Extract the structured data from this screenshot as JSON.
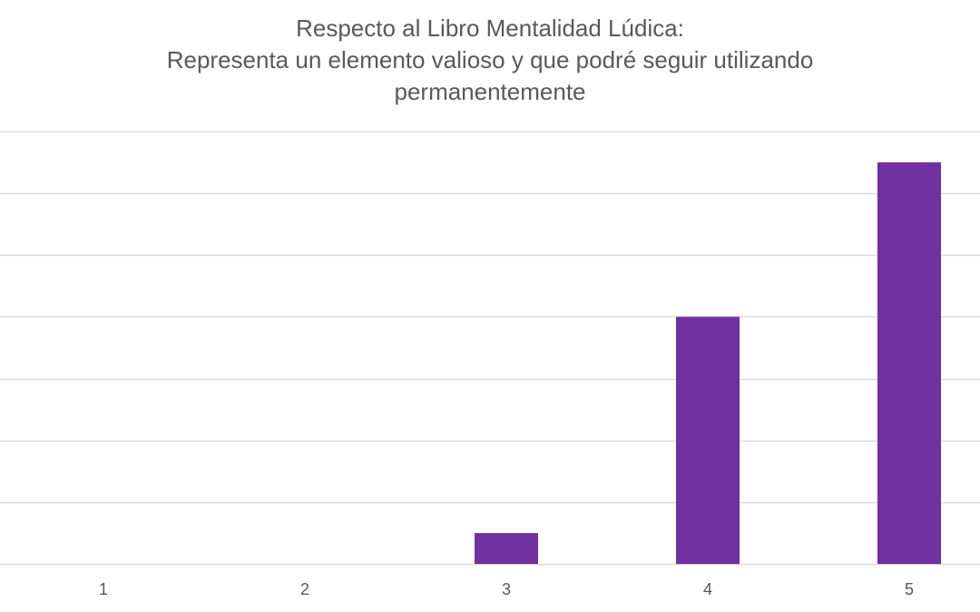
{
  "chart_data": {
    "type": "bar",
    "title": [
      "Respecto al Libro Mentalidad Lúdica:",
      "Representa un elemento valioso y que podré seguir utilizando",
      "permanentemente"
    ],
    "xlabel": "",
    "ylabel": "",
    "categories": [
      "1",
      "2",
      "3",
      "4",
      "5"
    ],
    "series": [
      {
        "values": [
          0,
          0,
          0.5,
          4,
          6.5
        ]
      }
    ],
    "ylim": [
      0,
      7
    ],
    "y_gridline_step": 1,
    "y_tick_labels_visible": false,
    "grid": true,
    "legend": "none",
    "colors": {
      "bar": "#7030a0",
      "grid": "#d9d9d9",
      "text": "#595959"
    }
  }
}
